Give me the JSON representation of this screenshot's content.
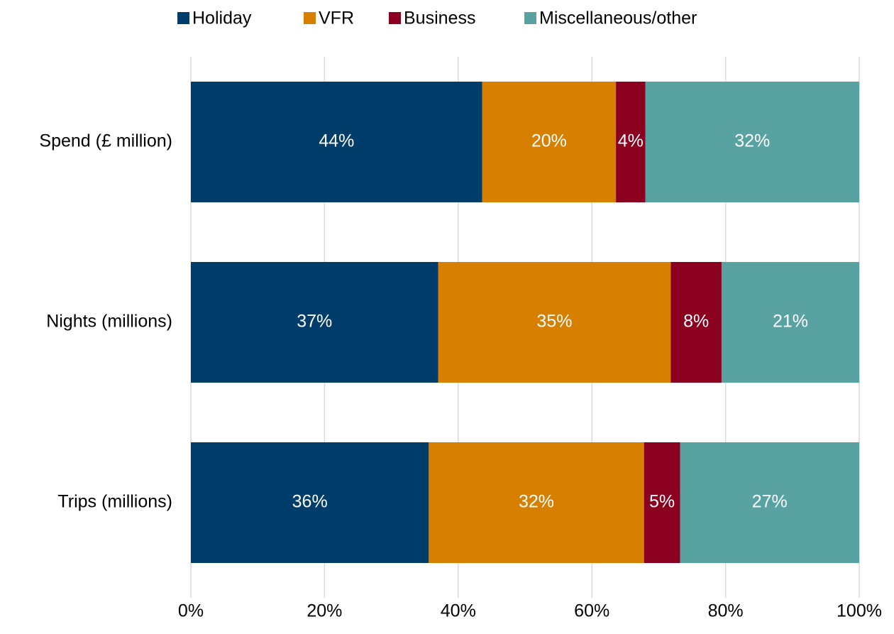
{
  "chart_data": {
    "type": "stacked-bar",
    "categories": [
      "Spend (£ million)",
      "Nights (millions)",
      "Trips (millions)"
    ],
    "series": [
      {
        "name": "Holiday",
        "color": "#003d6a",
        "values": [
          43.6,
          37.0,
          35.6
        ],
        "value_labels": [
          "44%",
          "37%",
          "36%"
        ]
      },
      {
        "name": "VFR",
        "color": "#d67f00",
        "values": [
          20.0,
          34.8,
          32.2
        ],
        "value_labels": [
          "20%",
          "35%",
          "32%"
        ]
      },
      {
        "name": "Business",
        "color": "#8a001e",
        "values": [
          4.4,
          7.6,
          5.4
        ],
        "value_labels": [
          "4%",
          "8%",
          "5%"
        ]
      },
      {
        "name": "Miscellaneous/other",
        "color": "#58a2a2",
        "values": [
          32.0,
          20.6,
          26.8
        ],
        "value_labels": [
          "32%",
          "21%",
          "27%"
        ]
      }
    ],
    "xlim": [
      0,
      100
    ],
    "xticks": [
      {
        "value": 0,
        "label": "0%"
      },
      {
        "value": 20,
        "label": "20%"
      },
      {
        "value": 40,
        "label": "40%"
      },
      {
        "value": 60,
        "label": "60%"
      },
      {
        "value": 80,
        "label": "80%"
      },
      {
        "value": 100,
        "label": "100%"
      }
    ],
    "grid": true,
    "legend": "top"
  }
}
